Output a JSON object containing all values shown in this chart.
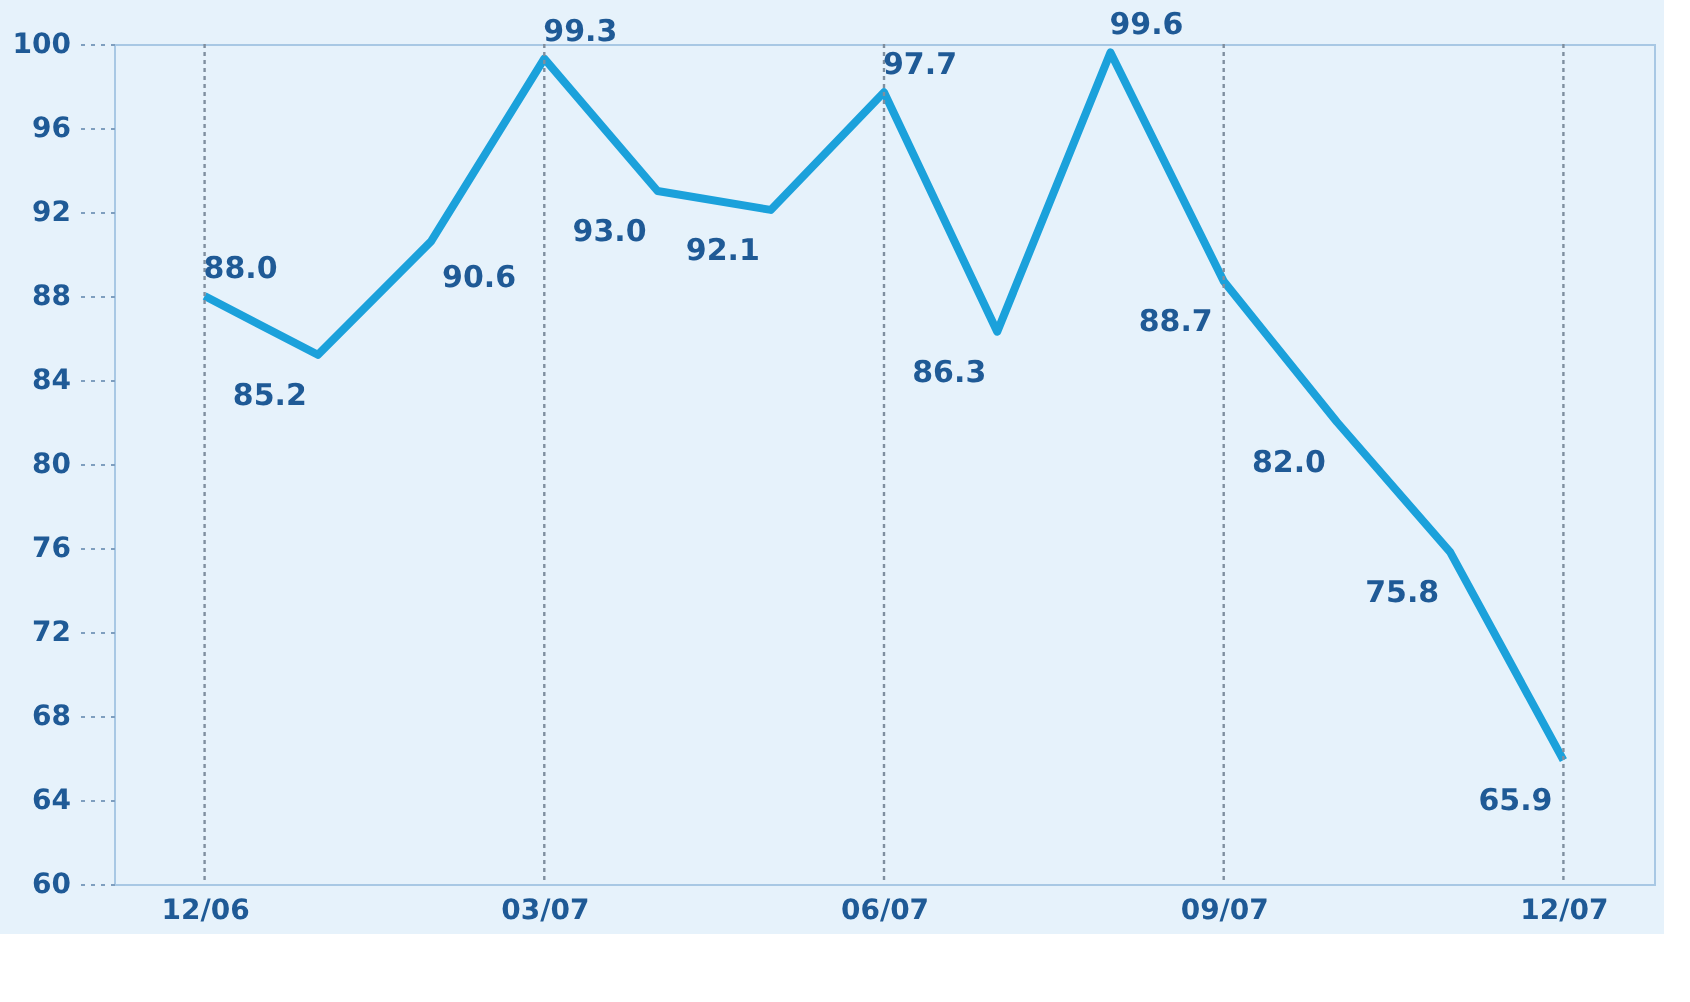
{
  "chart_data": {
    "type": "line",
    "categories": [
      "12/06",
      null,
      null,
      "03/07",
      null,
      null,
      "06/07",
      null,
      null,
      "09/07",
      null,
      null,
      "12/07"
    ],
    "series": [
      {
        "color": "#1ba1db",
        "values": [
          88.0,
          85.2,
          90.6,
          99.3,
          93.0,
          92.1,
          97.7,
          86.3,
          99.6,
          88.7,
          82.0,
          75.8,
          65.9
        ],
        "value_labels": [
          "88.0",
          "85.2",
          "90.6",
          "99.3",
          "93.0",
          "92.1",
          "97.7",
          "86.3",
          "99.6",
          "88.7",
          "82.0",
          "75.8",
          "65.9"
        ]
      }
    ],
    "ylim": [
      60,
      100
    ],
    "yticks": [
      60,
      64,
      68,
      72,
      76,
      80,
      84,
      88,
      92,
      96,
      100
    ],
    "grid": "x",
    "marker": "none",
    "line_style": "solid",
    "legend": false
  }
}
